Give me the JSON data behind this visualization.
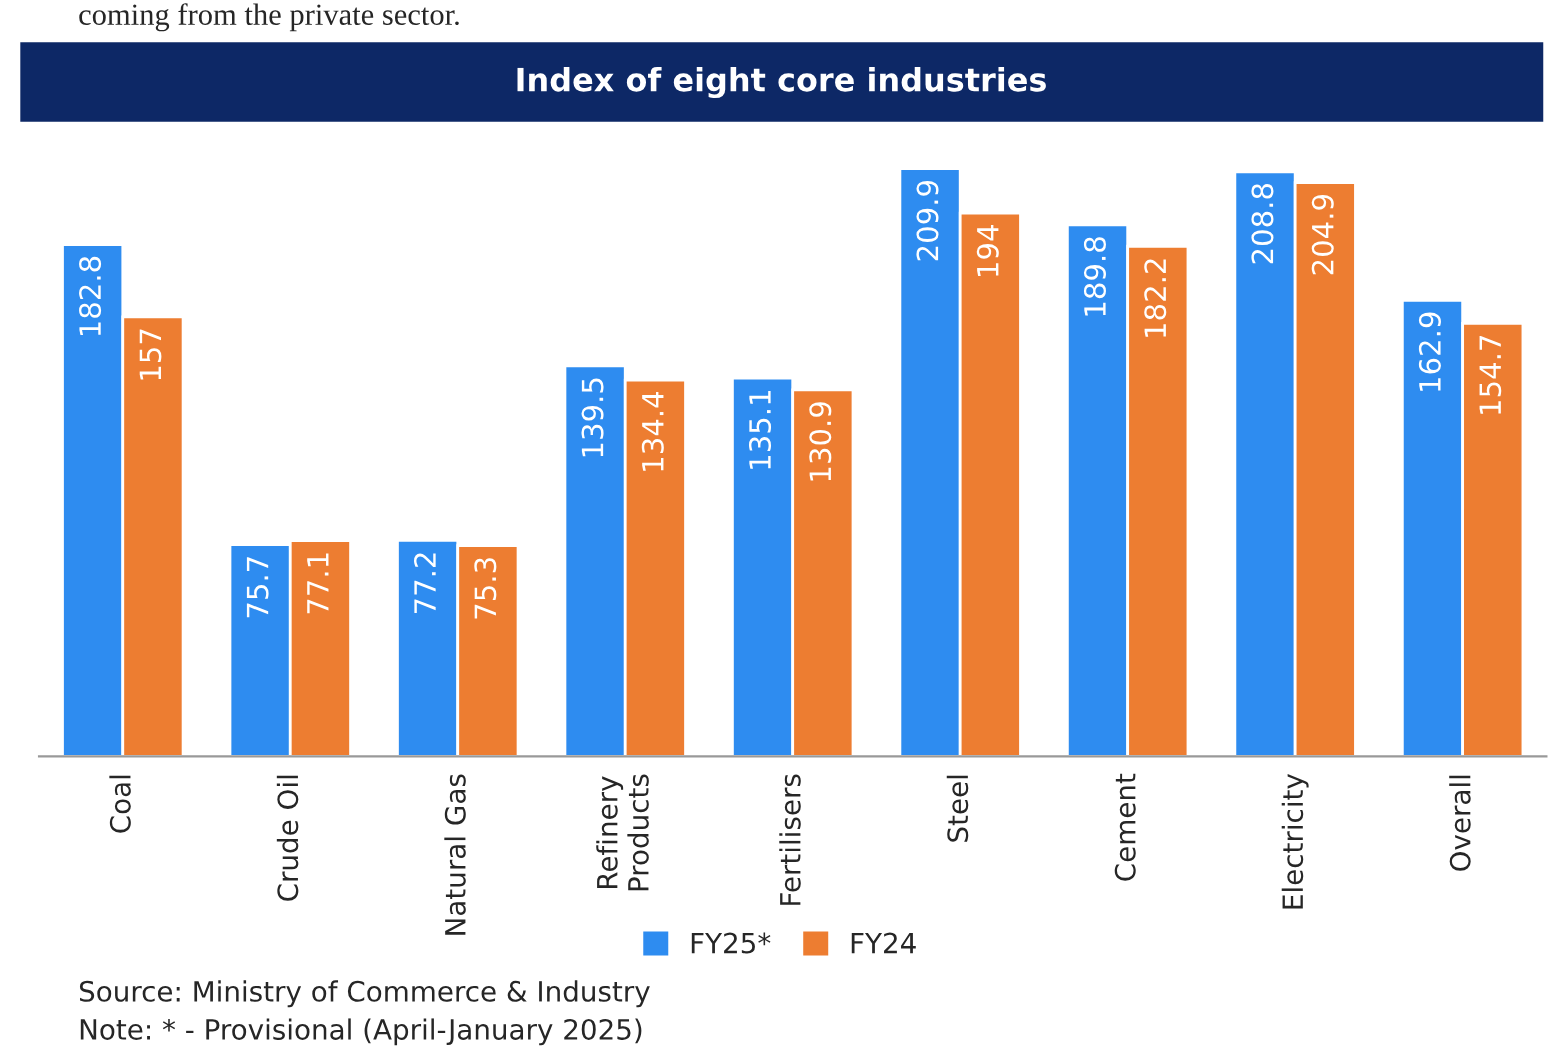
{
  "chart_data": {
    "type": "bar",
    "title": "Index of eight core industries",
    "categories": [
      "Coal",
      "Crude Oil",
      "Natural Gas",
      "Refinery\nProducts",
      "Fertilisers",
      "Steel",
      "Cement",
      "Electricity",
      "Overall"
    ],
    "series": [
      {
        "name": "FY25*",
        "color": "#2e8cf0",
        "values": [
          182.8,
          75.7,
          77.2,
          139.5,
          135.1,
          209.9,
          189.8,
          208.8,
          162.9
        ]
      },
      {
        "name": "FY24",
        "color": "#ed7d31",
        "values": [
          157,
          77.1,
          75.3,
          134.4,
          130.9,
          194,
          182.2,
          204.9,
          154.7
        ]
      }
    ],
    "data_labels": true,
    "legend": "bottom",
    "grid": false,
    "annotations": [
      "coming from the private sector.",
      "Source: Ministry of Commerce & Industry",
      "Note: * - Provisional (April-January 2025)"
    ]
  }
}
